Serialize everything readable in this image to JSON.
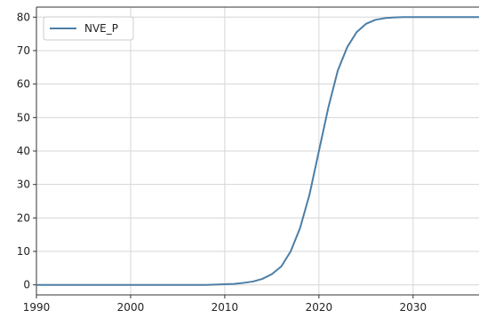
{
  "chart_data": {
    "type": "line",
    "title": "",
    "xlabel": "",
    "ylabel": "",
    "xlim": [
      1990,
      2037
    ],
    "ylim": [
      -3,
      83
    ],
    "grid": true,
    "legend_position": "top-left",
    "x_ticks": [
      "1990",
      "2000",
      "2010",
      "2020",
      "2030"
    ],
    "y_ticks": [
      "0",
      "10",
      "20",
      "30",
      "40",
      "50",
      "60",
      "70",
      "80"
    ],
    "series": [
      {
        "name": "NVE_P",
        "color": "#4c7ea6",
        "x": [
          1990,
          2000,
          2005,
          2008,
          2010,
          2011,
          2012,
          2013,
          2014,
          2015,
          2016,
          2017,
          2018,
          2019,
          2020,
          2021,
          2022,
          2023,
          2024,
          2025,
          2026,
          2027,
          2028,
          2029,
          2030,
          2032,
          2034,
          2037
        ],
        "y": [
          0,
          0,
          0,
          0,
          0.2,
          0.3,
          0.6,
          1.0,
          1.8,
          3.2,
          5.5,
          10,
          17,
          27,
          40,
          53,
          64,
          71,
          75.5,
          78,
          79.2,
          79.7,
          79.9,
          80,
          80,
          80,
          80,
          80
        ]
      }
    ]
  }
}
